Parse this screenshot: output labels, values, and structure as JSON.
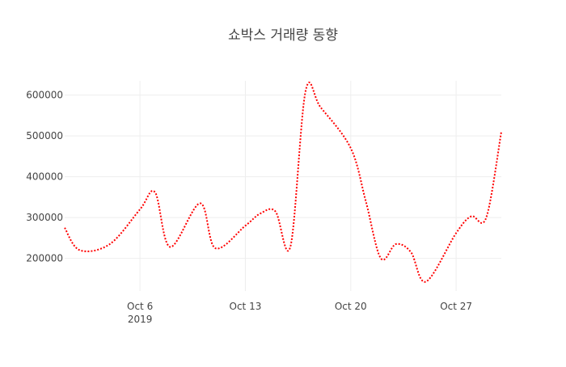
{
  "chart_data": {
    "type": "line",
    "title": "쇼박스 거래량 동향",
    "xlabel": "",
    "ylabel": "",
    "x_range": [
      "2019-10-01",
      "2019-10-30"
    ],
    "ylim": [
      120000,
      635000
    ],
    "grid": true,
    "line_style": "dotted",
    "colors": {
      "line": "#ff0000",
      "grid": "#eeeeee",
      "text": "#444444"
    },
    "x_ticks": [
      {
        "date": "2019-10-06",
        "label": "Oct 6",
        "sublabel": "2019"
      },
      {
        "date": "2019-10-13",
        "label": "Oct 13",
        "sublabel": ""
      },
      {
        "date": "2019-10-20",
        "label": "Oct 20",
        "sublabel": ""
      },
      {
        "date": "2019-10-27",
        "label": "Oct 27",
        "sublabel": ""
      }
    ],
    "y_ticks": [
      {
        "value": 200000,
        "label": "200000"
      },
      {
        "value": 300000,
        "label": "300000"
      },
      {
        "value": 400000,
        "label": "400000"
      },
      {
        "value": 500000,
        "label": "500000"
      },
      {
        "value": 600000,
        "label": "600000"
      }
    ],
    "series": [
      {
        "x": [
          "2019-10-01",
          "2019-10-02",
          "2019-10-04",
          "2019-10-06",
          "2019-10-07",
          "2019-10-08",
          "2019-10-10",
          "2019-10-11",
          "2019-10-13",
          "2019-10-14",
          "2019-10-15",
          "2019-10-16",
          "2019-10-17",
          "2019-10-18",
          "2019-10-20",
          "2019-10-21",
          "2019-10-22",
          "2019-10-23",
          "2019-10-24",
          "2019-10-25",
          "2019-10-27",
          "2019-10-28",
          "2019-10-29",
          "2019-10-30"
        ],
        "y": [
          275000,
          220000,
          235000,
          320000,
          362000,
          228000,
          335000,
          225000,
          280000,
          310000,
          315000,
          230000,
          610000,
          570000,
          470000,
          340000,
          200000,
          235000,
          215000,
          143000,
          262000,
          303000,
          300000,
          510000
        ]
      }
    ]
  }
}
